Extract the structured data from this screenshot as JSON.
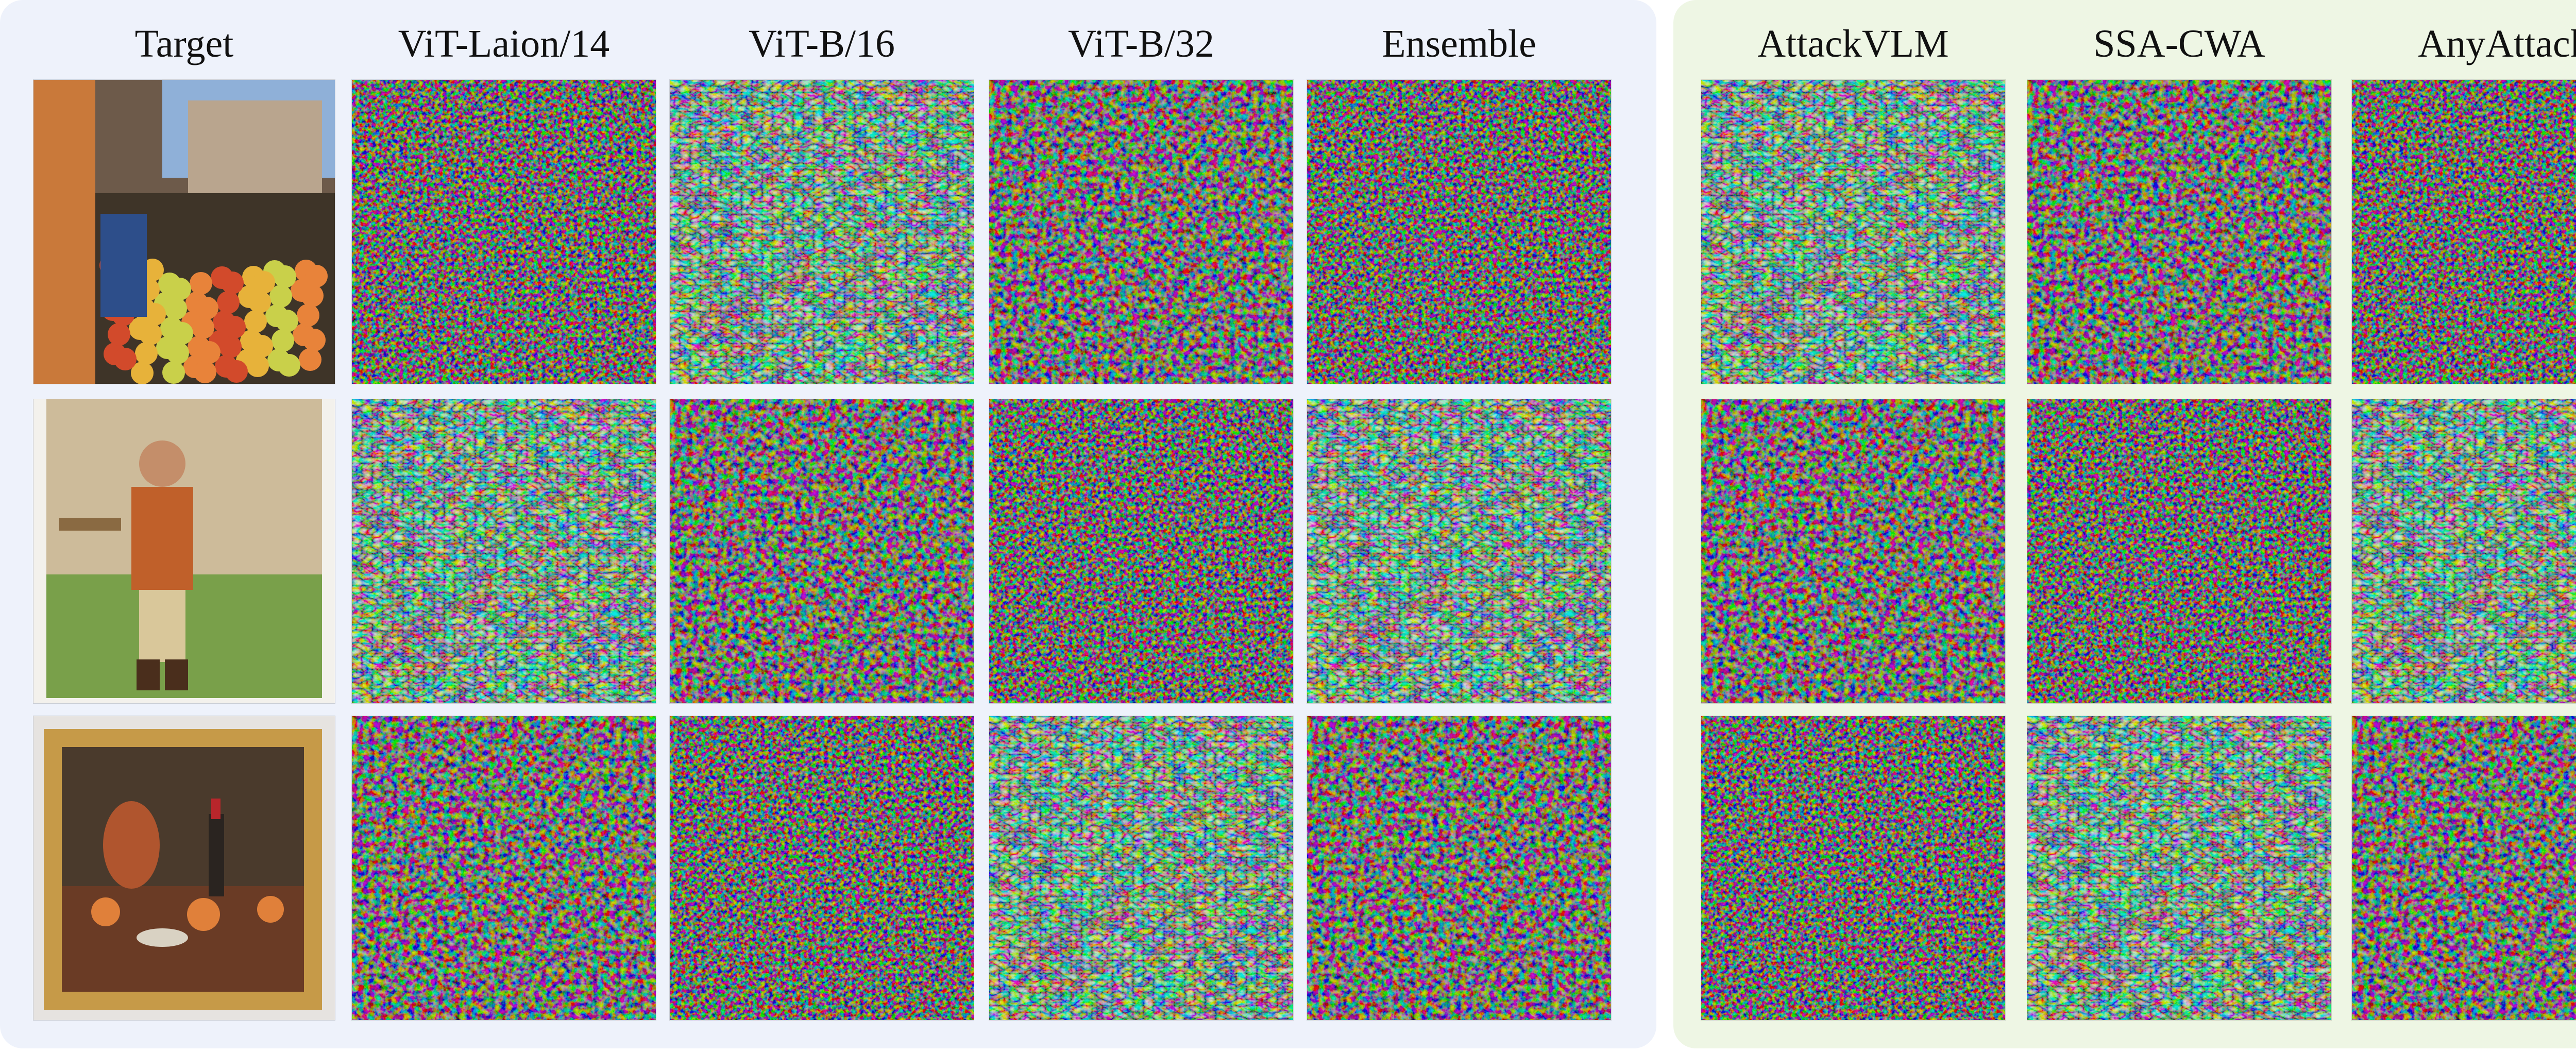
{
  "colors": {
    "left_panel_bg": "#eef2fb",
    "right_panel_bg": "#eef6e4"
  },
  "left_panel": {
    "columns": [
      {
        "label": "Target",
        "kind": "photo"
      },
      {
        "label": "ViT-Laion/14",
        "kind": "perturbation"
      },
      {
        "label": "ViT-B/16",
        "kind": "perturbation"
      },
      {
        "label": "ViT-B/32",
        "kind": "perturbation"
      },
      {
        "label": "Ensemble",
        "kind": "perturbation"
      }
    ]
  },
  "right_panel": {
    "columns": [
      {
        "label": "AttackVLM",
        "kind": "perturbation"
      },
      {
        "label": "SSA-CWA",
        "kind": "perturbation"
      },
      {
        "label": "AnyAttack",
        "kind": "perturbation"
      }
    ]
  },
  "rows": [
    {
      "target_scene": "market-stall-with-fruit-photo"
    },
    {
      "target_scene": "man-in-medieval-costume-photo"
    },
    {
      "target_scene": "framed-still-life-painting"
    }
  ]
}
